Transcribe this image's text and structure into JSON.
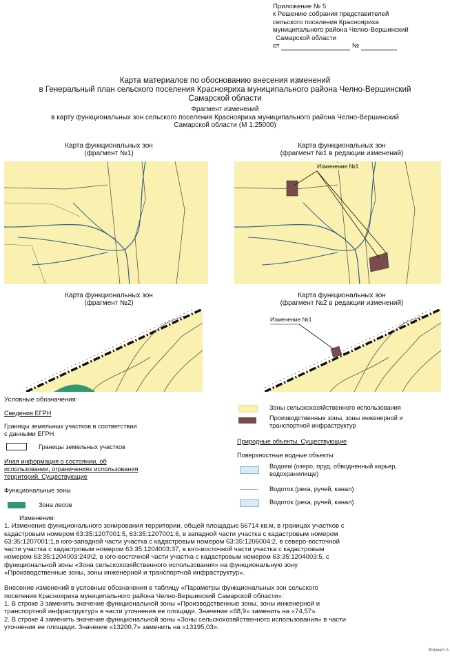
{
  "annex": {
    "line1": "Приложение № 5",
    "line2": "к Решению собрания представителей",
    "line3": "сельского поселения Краснояриха",
    "line4": "муниципального района Челно-Вершинский",
    "line5": "Самарской области",
    "line6_prefix": "от",
    "line6_number": "№"
  },
  "title": {
    "line1": "Карта материалов по обоснованию внесения изменений",
    "line2": "в Генеральный план сельского поселения Краснояриха муниципального района Челно-Вершинский",
    "line3": "Самарской области",
    "sub1": "Фрагмент изменений",
    "sub2": "в карту функциональных зон сельского поселения Краснояриха муниципального района Челно-Вершинский",
    "sub3": "Самарской области (М 1:25000)"
  },
  "maps": {
    "m1_title1": "Карта функциональных зон",
    "m1_title2": "(фрагмент №1)",
    "m2_title1": "Карта функциональных зон",
    "m2_title2": "(фрагмент №1 в редакции изменений)",
    "m2_callout": "Изменение №1",
    "m3_title1": "Карта функциональных зон",
    "m3_title2": "(фрагмент №2)",
    "m4_title1": "Карта функциональных зон",
    "m4_title2": "(фрагмент №2 в редакции изменений)",
    "m4_callout": "Изменение №1"
  },
  "legend": {
    "heading": "Условные обозначения:",
    "egrn": "Сведения ЕГРН",
    "egrn_bounds_1": "Границы земельных участков в соответствии",
    "egrn_bounds_2": "с данными ЕГРН",
    "parcel_bounds": "Границы земельных участков",
    "other_info_1": "Иная информация о состоянии, об",
    "other_info_2": "использовании, ограничениях использования",
    "other_info_3": "территорий. Существующие",
    "func_zones": "Функциональные зоны",
    "forest": "Зона лесов",
    "agri": "Зоны сельскохозяйственного использования",
    "industrial_1": "Производственные зоны, зоны инженерной и",
    "industrial_2": "транспортной инфраструктур",
    "natural": "Природные объекты. Существующие",
    "surface_water": "Поверхностные водные объекты",
    "reservoir_1": "Водоем (озеро, пруд, обводненный карьер,",
    "reservoir_2": "водохранилище)",
    "stream_line": "Водоток (река, ручей, канал)",
    "stream_area": "Водоток (река, ручей, канал)"
  },
  "changes": {
    "heading": "Изменения:",
    "p1_l1": "1. Изменение функционального зонирования территории, общей площадью 56714 кв.м, в границах участков с",
    "p1_l2": "кадастровым номером 63:35:1207001:5, 63:35:1207001:6, в западной части участка с кадастровым номером",
    "p1_l3": "63:35:1207001:1,в юго-западной части участка с кадастровым номером  63:35:1206004:2, в северо-восточной",
    "p1_l4": "части участка с кадастровым номером  63:35:1204003:37, в юго-восточной части участка с кадастровым",
    "p1_l5": "номером  63:35:1204003:249\\2, в юго-восточной части участка с кадастровым номером  63:35:1204003:5, с",
    "p1_l6": "функциональной зоны «Зона сельскохозяйственного использования» на функциональную зону",
    "p1_l7": "«Производственные зоны, зоны инженерной и транспортной инфраструктур».",
    "p2_l1": "Внесение изменений в условные обозначения в таблицу «Параметры функциональных зон сельского",
    "p2_l2": "поселения Краснояриха муниципального района Челно-Вершинский Самарской области»:",
    "p2_l3": "1. В строке 3 заменить значение функциональной зоны «Производственные зоны, зоны инженерной и",
    "p2_l4": "транспортной инфраструктур» в части уточнения ее площади. Значение «68,9» заменить на «74,57».",
    "p2_l5": "2. В строке 4 заменить значение функциональной зоны «Зоны сельскохозяйственного использования» в части",
    "p2_l6": "уточнения ее площади. Значение «13200,7» заменить на «13195,03».",
    "footer": "Формат А"
  },
  "colors": {
    "agri": "#faf0b0",
    "industrial": "#7a4b4b",
    "forest": "#2e9870",
    "water": "#d7ecf6",
    "stream": "#2a5f8a",
    "rail_dark": "#111111",
    "parcel": "#555555"
  }
}
